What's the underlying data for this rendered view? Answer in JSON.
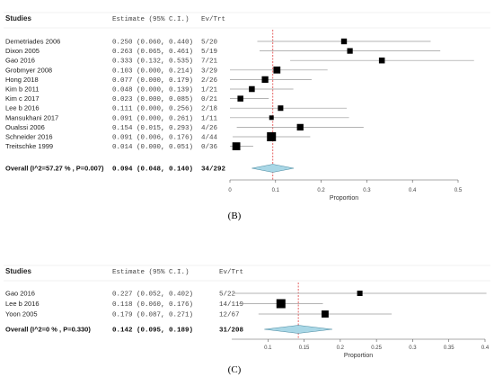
{
  "chart_data": [
    {
      "type": "forest",
      "panel_label": "(B)",
      "headers": {
        "studies": "Studies",
        "estimate": "Estimate (95% C.I.)",
        "events": "Ev/Trt"
      },
      "xlabel": "Proportion",
      "xlim": [
        0,
        0.5
      ],
      "xticks": [
        "0",
        "0.1",
        "0.2",
        "0.3",
        "0.4",
        "0.5"
      ],
      "reference_line": 0.094,
      "studies": [
        {
          "name": "Demetriades 2006",
          "estimate_text": "0.250 (0.060, 0.440)",
          "events": "5/20",
          "est": 0.25,
          "lo": 0.06,
          "hi": 0.44
        },
        {
          "name": "Dixon 2005",
          "estimate_text": "0.263 (0.065, 0.461)",
          "events": "5/19",
          "est": 0.263,
          "lo": 0.065,
          "hi": 0.461
        },
        {
          "name": "Gao 2016",
          "estimate_text": "0.333 (0.132, 0.535)",
          "events": "7/21",
          "est": 0.333,
          "lo": 0.132,
          "hi": 0.535
        },
        {
          "name": "Grobmyer 2008",
          "estimate_text": "0.103 (0.000, 0.214)",
          "events": "3/29",
          "est": 0.103,
          "lo": 0.0,
          "hi": 0.214
        },
        {
          "name": "Hong 2018",
          "estimate_text": "0.077 (0.000, 0.179)",
          "events": "2/26",
          "est": 0.077,
          "lo": 0.0,
          "hi": 0.179
        },
        {
          "name": "Kim b 2011",
          "estimate_text": "0.048 (0.000, 0.139)",
          "events": "1/21",
          "est": 0.048,
          "lo": 0.0,
          "hi": 0.139
        },
        {
          "name": "Kim c 2017",
          "estimate_text": "0.023 (0.000, 0.085)",
          "events": "0/21",
          "est": 0.023,
          "lo": 0.0,
          "hi": 0.085
        },
        {
          "name": "Lee b 2016",
          "estimate_text": "0.111 (0.000, 0.256)",
          "events": "2/18",
          "est": 0.111,
          "lo": 0.0,
          "hi": 0.256
        },
        {
          "name": "Mansukhani 2017",
          "estimate_text": "0.091 (0.000, 0.261)",
          "events": "1/11",
          "est": 0.091,
          "lo": 0.0,
          "hi": 0.261
        },
        {
          "name": "Oualssi 2006",
          "estimate_text": "0.154 (0.015, 0.293)",
          "events": "4/26",
          "est": 0.154,
          "lo": 0.015,
          "hi": 0.293
        },
        {
          "name": "Schneider 2016",
          "estimate_text": "0.091 (0.006, 0.176)",
          "events": "4/44",
          "est": 0.091,
          "lo": 0.006,
          "hi": 0.176
        },
        {
          "name": "Treitschke 1999",
          "estimate_text": "0.014 (0.000, 0.051)",
          "events": "0/36",
          "est": 0.014,
          "lo": 0.0,
          "hi": 0.051
        }
      ],
      "overall": {
        "name": "Overall (I^2=57.27 % , P=0.007)",
        "estimate_text": "0.094 (0.048, 0.140)",
        "events": "34/292",
        "est": 0.094,
        "lo": 0.048,
        "hi": 0.14
      }
    },
    {
      "type": "forest",
      "panel_label": "(C)",
      "headers": {
        "studies": "Studies",
        "estimate": "Estimate (95% C.I.)",
        "events": "Ev/Trt"
      },
      "xlabel": "Proportion",
      "xlim": [
        0.05,
        0.4
      ],
      "xticks": [
        "0.1",
        "0.15",
        "0.2",
        "0.25",
        "0.3",
        "0.35",
        "0.4"
      ],
      "reference_line": 0.142,
      "studies": [
        {
          "name": "Gao 2016",
          "estimate_text": "0.227 (0.052, 0.402)",
          "events": "5/22",
          "est": 0.227,
          "lo": 0.052,
          "hi": 0.402
        },
        {
          "name": "Lee b 2016",
          "estimate_text": "0.118 (0.060, 0.176)",
          "events": "14/119",
          "est": 0.118,
          "lo": 0.06,
          "hi": 0.176
        },
        {
          "name": "Yoon 2005",
          "estimate_text": "0.179 (0.087, 0.271)",
          "events": "12/67",
          "est": 0.179,
          "lo": 0.087,
          "hi": 0.271
        }
      ],
      "overall": {
        "name": "Overall (I^2=0 % , P=0.330)",
        "estimate_text": "0.142 (0.095, 0.189)",
        "events": "31/208",
        "est": 0.142,
        "lo": 0.095,
        "hi": 0.189
      }
    }
  ]
}
